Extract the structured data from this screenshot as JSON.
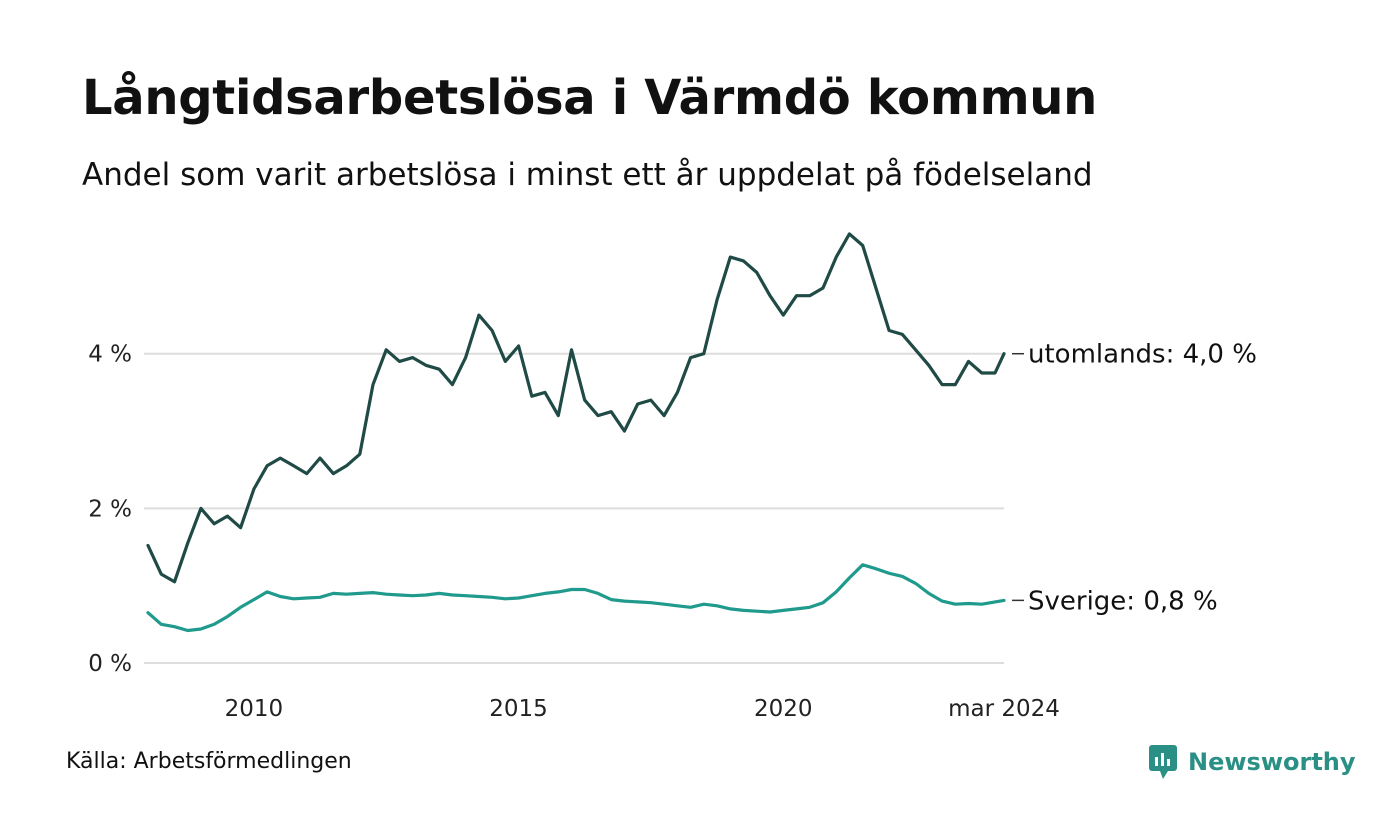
{
  "title": "Långtidsarbetslösa i Värmdö kommun",
  "subtitle": "Andel som varit arbetslösa i minst ett år uppdelat på födelseland",
  "source": "Källa: Arbetsförmedlingen",
  "brand": {
    "name": "Newsworthy",
    "icon": "newsworthy-logo-icon"
  },
  "colors": {
    "utomlands": "#1f4a45",
    "sverige": "#1f9a8c",
    "grid": "#dddddd"
  },
  "chart_data": {
    "type": "line",
    "title": "Långtidsarbetslösa i Värmdö kommun",
    "xlabel": "",
    "ylabel": "",
    "ylim": [
      0,
      5.6
    ],
    "xlim": [
      2008.0,
      2024.17
    ],
    "yticks": [
      0,
      2,
      4
    ],
    "ytick_labels": [
      "0 %",
      "2 %",
      "4 %"
    ],
    "xticks": [
      2010,
      2015,
      2020,
      2024.17
    ],
    "xtick_labels": [
      "2010",
      "2015",
      "2020",
      "mar 2024"
    ],
    "grid": true,
    "legend": "end-of-line labels",
    "series": [
      {
        "name": "utomlands",
        "label": "utomlands: 4,0 %",
        "color": "#1f4a45",
        "x": [
          2008.0,
          2008.25,
          2008.5,
          2008.75,
          2009.0,
          2009.25,
          2009.5,
          2009.75,
          2010.0,
          2010.25,
          2010.5,
          2010.75,
          2011.0,
          2011.25,
          2011.5,
          2011.75,
          2012.0,
          2012.25,
          2012.5,
          2012.75,
          2013.0,
          2013.25,
          2013.5,
          2013.75,
          2014.0,
          2014.25,
          2014.5,
          2014.75,
          2015.0,
          2015.25,
          2015.5,
          2015.75,
          2016.0,
          2016.25,
          2016.5,
          2016.75,
          2017.0,
          2017.25,
          2017.5,
          2017.75,
          2018.0,
          2018.25,
          2018.5,
          2018.75,
          2019.0,
          2019.25,
          2019.5,
          2019.75,
          2020.0,
          2020.25,
          2020.5,
          2020.75,
          2021.0,
          2021.25,
          2021.5,
          2021.75,
          2022.0,
          2022.25,
          2022.5,
          2022.75,
          2023.0,
          2023.25,
          2023.5,
          2023.75,
          2024.0,
          2024.17
        ],
        "values": [
          1.52,
          1.15,
          1.05,
          1.55,
          2.0,
          1.8,
          1.9,
          1.75,
          2.25,
          2.55,
          2.65,
          2.55,
          2.45,
          2.65,
          2.45,
          2.55,
          2.7,
          3.6,
          4.05,
          3.9,
          3.95,
          3.85,
          3.8,
          3.6,
          3.95,
          4.5,
          4.3,
          3.9,
          4.1,
          3.45,
          3.5,
          3.2,
          4.05,
          3.4,
          3.2,
          3.25,
          3.0,
          3.35,
          3.4,
          3.2,
          3.5,
          3.95,
          4.0,
          4.7,
          5.25,
          5.2,
          5.05,
          4.75,
          4.5,
          4.75,
          4.75,
          4.85,
          5.25,
          5.55,
          5.4,
          4.85,
          4.3,
          4.25,
          4.05,
          3.85,
          3.6,
          3.6,
          3.9,
          3.75,
          3.75,
          4.0
        ]
      },
      {
        "name": "Sverige",
        "label": "Sverige: 0,8 %",
        "color": "#1f9a8c",
        "x": [
          2008.0,
          2008.25,
          2008.5,
          2008.75,
          2009.0,
          2009.25,
          2009.5,
          2009.75,
          2010.0,
          2010.25,
          2010.5,
          2010.75,
          2011.0,
          2011.25,
          2011.5,
          2011.75,
          2012.0,
          2012.25,
          2012.5,
          2012.75,
          2013.0,
          2013.25,
          2013.5,
          2013.75,
          2014.0,
          2014.25,
          2014.5,
          2014.75,
          2015.0,
          2015.25,
          2015.5,
          2015.75,
          2016.0,
          2016.25,
          2016.5,
          2016.75,
          2017.0,
          2017.25,
          2017.5,
          2017.75,
          2018.0,
          2018.25,
          2018.5,
          2018.75,
          2019.0,
          2019.25,
          2019.5,
          2019.75,
          2020.0,
          2020.25,
          2020.5,
          2020.75,
          2021.0,
          2021.25,
          2021.5,
          2021.75,
          2022.0,
          2022.25,
          2022.5,
          2022.75,
          2023.0,
          2023.25,
          2023.5,
          2023.75,
          2024.0,
          2024.17
        ],
        "values": [
          0.65,
          0.5,
          0.47,
          0.42,
          0.44,
          0.5,
          0.6,
          0.72,
          0.82,
          0.92,
          0.86,
          0.83,
          0.84,
          0.85,
          0.9,
          0.89,
          0.9,
          0.91,
          0.89,
          0.88,
          0.87,
          0.88,
          0.9,
          0.88,
          0.87,
          0.86,
          0.85,
          0.83,
          0.84,
          0.87,
          0.9,
          0.92,
          0.95,
          0.95,
          0.9,
          0.82,
          0.8,
          0.79,
          0.78,
          0.76,
          0.74,
          0.72,
          0.76,
          0.74,
          0.7,
          0.68,
          0.67,
          0.66,
          0.68,
          0.7,
          0.72,
          0.78,
          0.92,
          1.1,
          1.27,
          1.22,
          1.16,
          1.12,
          1.03,
          0.9,
          0.8,
          0.76,
          0.77,
          0.76,
          0.79,
          0.81
        ]
      }
    ]
  }
}
